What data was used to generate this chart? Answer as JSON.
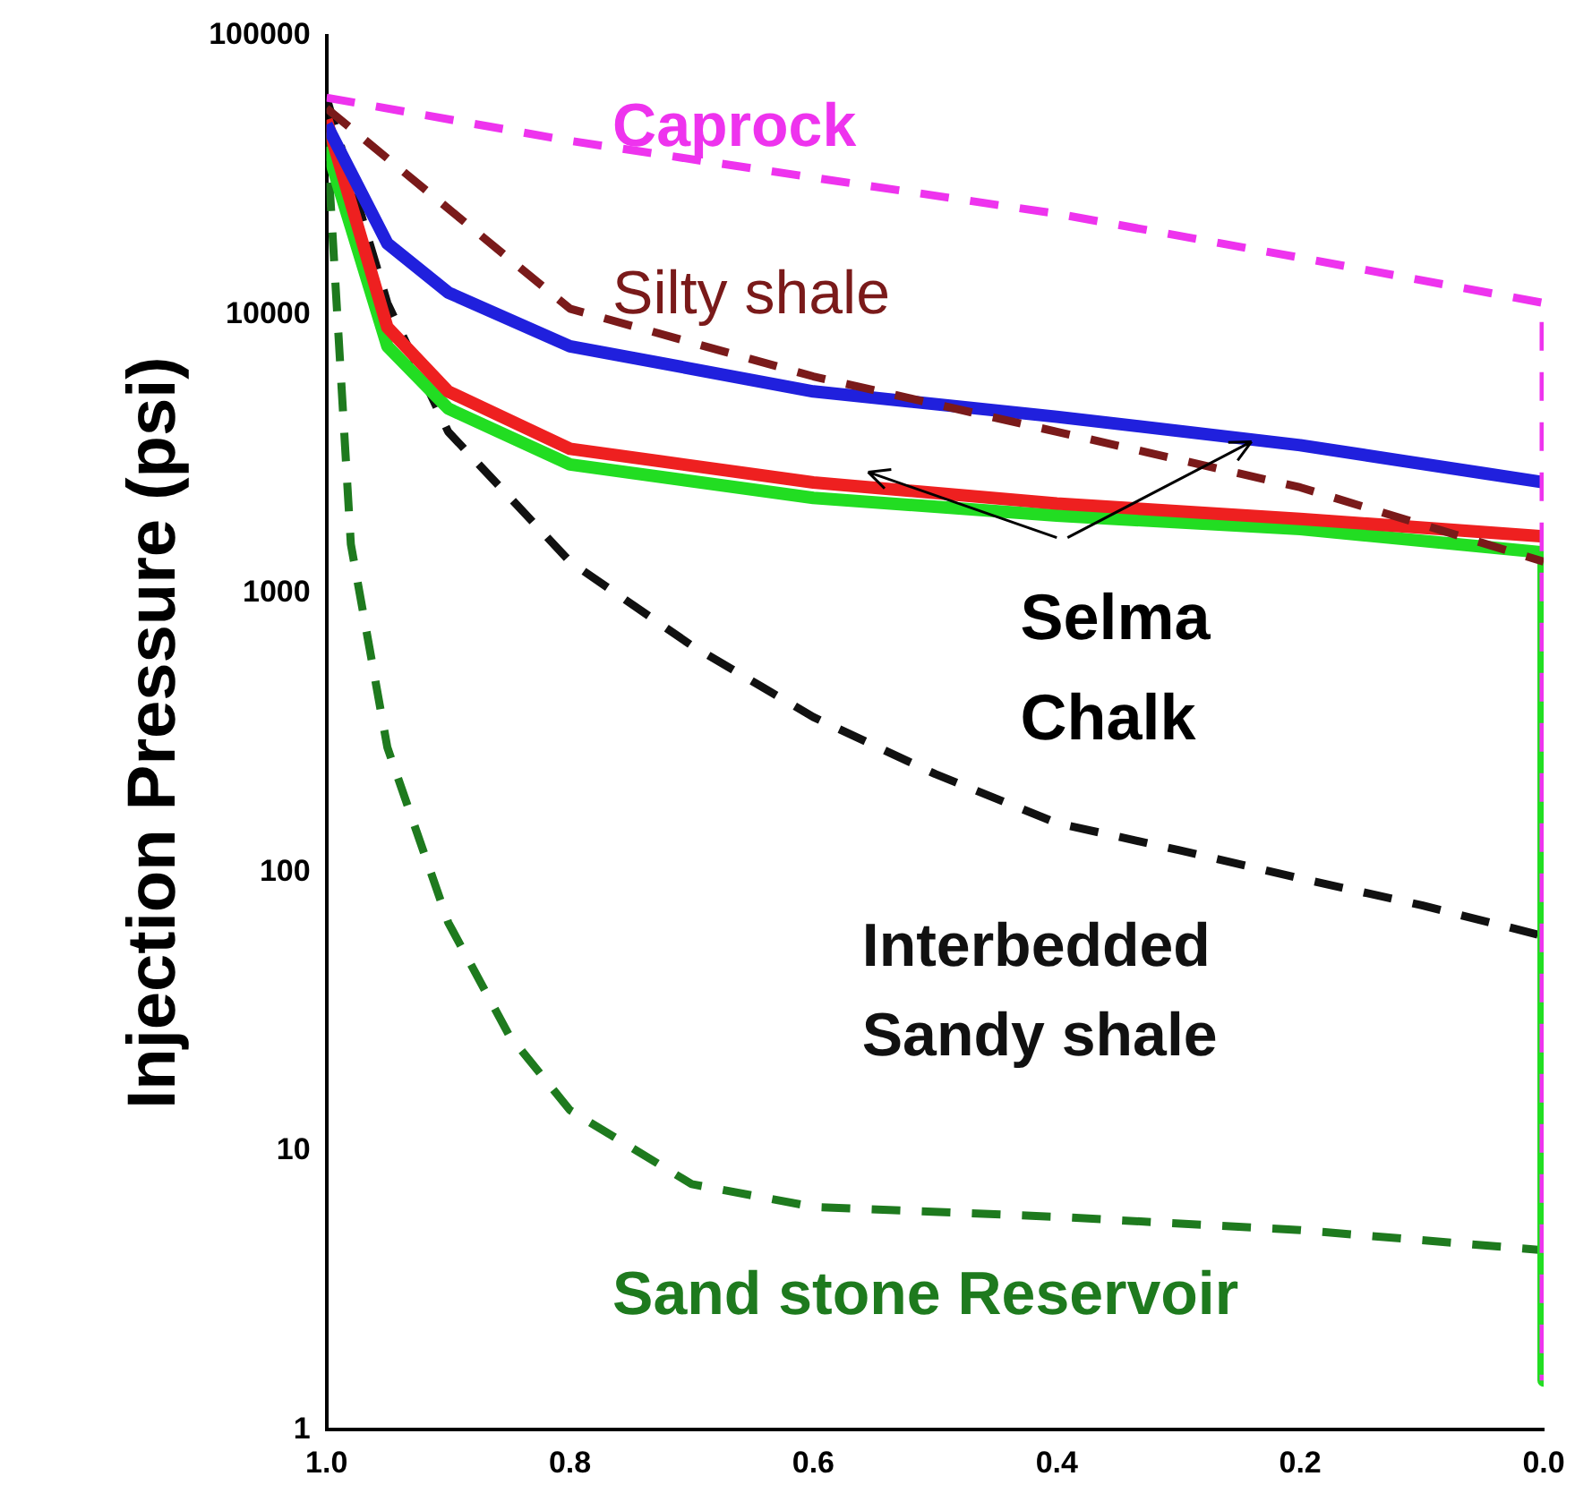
{
  "chart_data": {
    "type": "line",
    "ylabel": "Injection Pressure (psi)",
    "log": "y",
    "xlim": [
      1,
      0
    ],
    "xticks": [
      {
        "value": 1,
        "label": "1.0"
      },
      {
        "value": 0.8,
        "label": "0.8"
      },
      {
        "value": 0.6,
        "label": "0.6"
      },
      {
        "value": 0.4,
        "label": "0.4"
      },
      {
        "value": 0.2,
        "label": "0.2"
      },
      {
        "value": 0,
        "label": "0.0"
      }
    ],
    "ylim": [
      1,
      100000
    ],
    "yticks": [
      1,
      10,
      100,
      1000,
      10000,
      100000
    ],
    "grid": false,
    "legend": false,
    "marker": "none",
    "series": [
      {
        "name": "Caprock",
        "color": "#ee33ee",
        "line_style": "dashed",
        "x": [
          1,
          0.8,
          0.6,
          0.4,
          0.2,
          0,
          0
        ],
        "values": [
          60000,
          42000,
          31000,
          23000,
          16000,
          11000,
          1.5
        ]
      },
      {
        "name": "Silty shale",
        "color": "#7a1a1a",
        "line_style": "dashed",
        "x": [
          1,
          0.9,
          0.8,
          0.6,
          0.4,
          0.2,
          0
        ],
        "values": [
          55000,
          24000,
          10500,
          6000,
          3800,
          2400,
          1300
        ]
      },
      {
        "color": "#2020dd",
        "line_style": "solid",
        "x": [
          1,
          0.95,
          0.9,
          0.8,
          0.6,
          0.4,
          0.2,
          0.05,
          0
        ],
        "values": [
          48000,
          18000,
          12000,
          7700,
          5300,
          4300,
          3400,
          2700,
          2500
        ]
      },
      {
        "color": "#ee2020",
        "line_style": "solid",
        "x": [
          1,
          0.95,
          0.9,
          0.8,
          0.6,
          0.4,
          0.2,
          0
        ],
        "values": [
          50000,
          9000,
          5300,
          3300,
          2500,
          2100,
          1850,
          1600
        ]
      },
      {
        "color": "#22dd22",
        "line_style": "solid",
        "x": [
          1,
          0.95,
          0.9,
          0.8,
          0.6,
          0.4,
          0.2,
          0,
          0
        ],
        "values": [
          40000,
          7700,
          4600,
          2900,
          2200,
          1900,
          1700,
          1400,
          1.5
        ]
      },
      {
        "name": "Interbedded Sandy shale",
        "color": "#111111",
        "line_style": "dashed",
        "x": [
          1,
          0.95,
          0.9,
          0.8,
          0.7,
          0.6,
          0.5,
          0.4,
          0.3,
          0.2,
          0.1,
          0
        ],
        "values": [
          60000,
          11000,
          3800,
          1300,
          650,
          360,
          225,
          150,
          120,
          95,
          76,
          59
        ]
      },
      {
        "name": "Sand stone Reservoir",
        "color": "#1e7a1e",
        "line_style": "dashed",
        "x": [
          1,
          0.98,
          0.95,
          0.9,
          0.85,
          0.8,
          0.7,
          0.6,
          0.4,
          0.2,
          0
        ],
        "values": [
          45000,
          1500,
          280,
          66,
          26,
          14,
          7.6,
          6.3,
          5.8,
          5.2,
          4.4
        ]
      }
    ],
    "annotations": [
      {
        "text": "Selma Chalk",
        "x": 0.24,
        "y": 3500
      }
    ]
  }
}
